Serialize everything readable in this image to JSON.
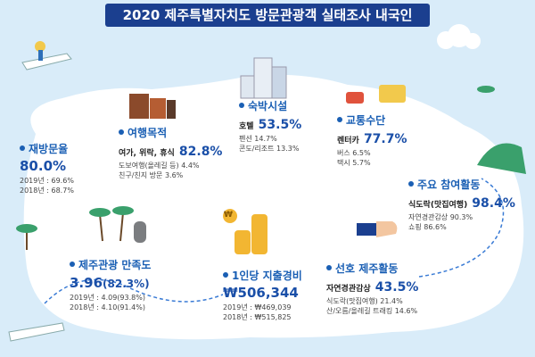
{
  "title": "2020 제주특별자치도 방문관광객 실태조사 내국인",
  "revisit": {
    "label": "재방문율",
    "value": "80.0%",
    "lines": [
      "2019년 : 69.6%",
      "2018년 : 68.7%"
    ]
  },
  "purpose": {
    "label": "여행목적",
    "main_item": "여가, 위락, 휴식",
    "main_value": "82.8%",
    "lines": [
      "도보여행(올레길 등) 4.4%",
      "친구/친지 방문  3.6%"
    ]
  },
  "lodging": {
    "label": "숙박시설",
    "main_item": "호텔",
    "main_value": "53.5%",
    "lines": [
      "펜션 14.7%",
      "콘도/리조트 13.3%"
    ]
  },
  "transport": {
    "label": "교통수단",
    "main_item": "렌터카",
    "main_value": "77.7%",
    "lines": [
      "버스 6.5%",
      "택시 5.7%"
    ]
  },
  "activity": {
    "label": "주요 참여활동",
    "main_item": "식도락(맛집여행)",
    "main_value": "98.4%",
    "lines": [
      "자연경관감상 90.3%",
      "쇼핑 86.6%"
    ]
  },
  "satisfaction": {
    "label": "제주관광 만족도",
    "value": "3.96",
    "value_paren": "(82.3%)",
    "lines": [
      "2019년 : 4.09(93.8%)",
      "2018년 : 4.10(91.4%)"
    ]
  },
  "spending": {
    "label": "1인당 지출경비",
    "value": "₩506,344",
    "lines": [
      "2019년 : ₩469,039",
      "2018년 : ₩515,825"
    ]
  },
  "preferred": {
    "label": "선호 제주활동",
    "main_item": "자연경관감상",
    "main_value": "43.5%",
    "lines": [
      "식도락(맛집여행) 21.4%",
      "산/오름/올레길 트래킹 14.6%"
    ]
  },
  "colors": {
    "title_bg": "#1b3f8f",
    "accent": "#1a4fa8",
    "sea": "#d9ecf9",
    "island": "#ffffff"
  },
  "coin_symbol": "₩"
}
